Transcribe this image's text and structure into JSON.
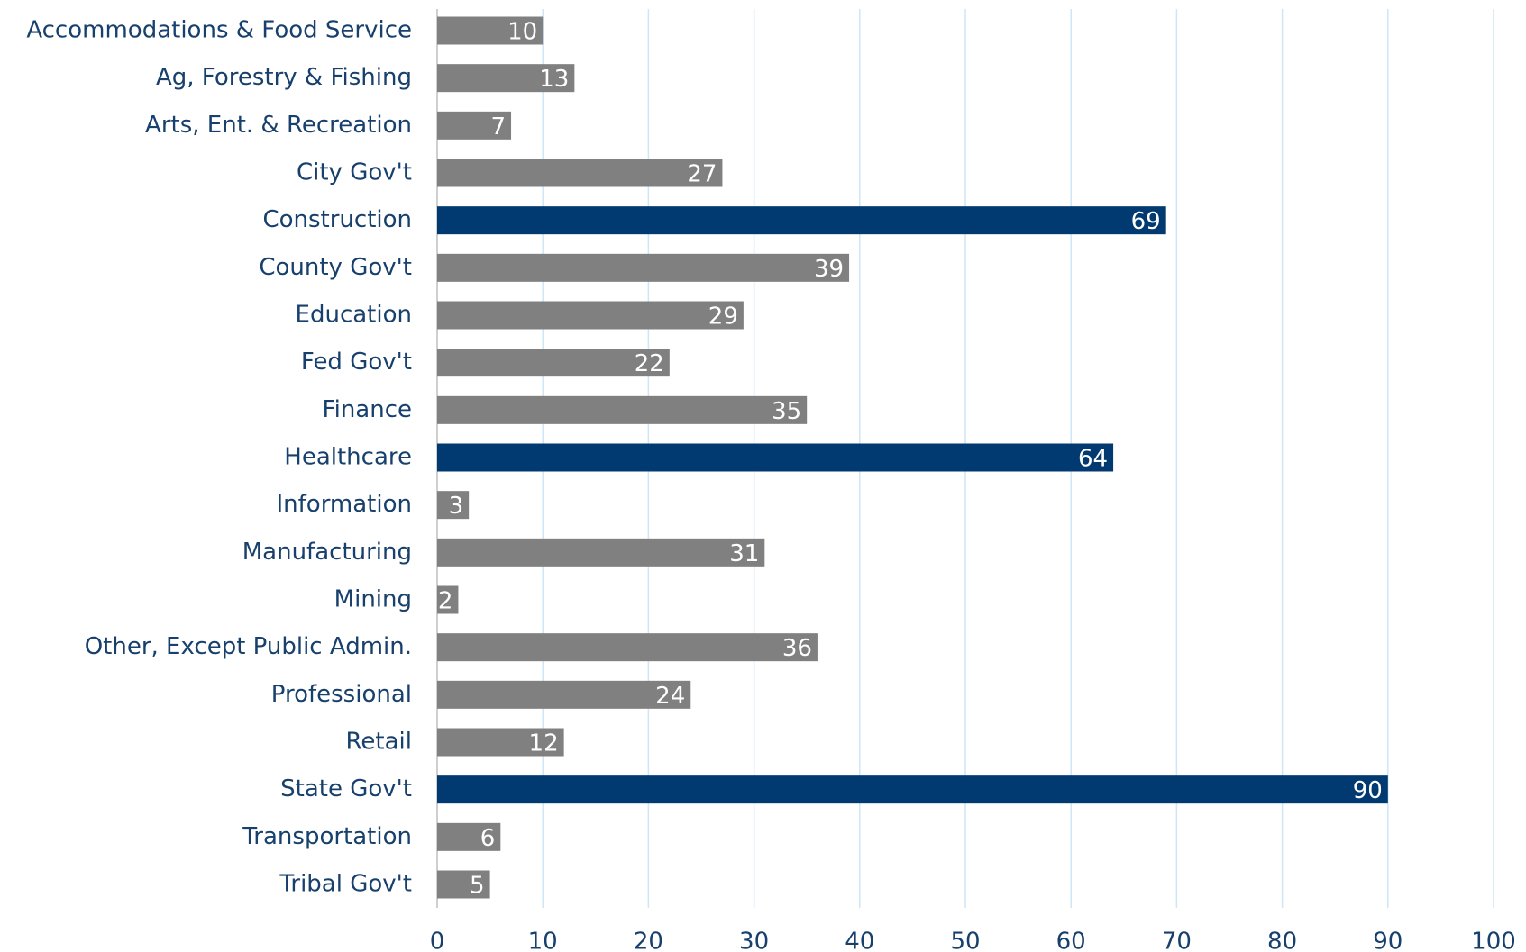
{
  "chart_data": {
    "type": "barh",
    "categories": [
      "Accommodations & Food Service",
      "Ag, Forestry & Fishing",
      "Arts, Ent. & Recreation",
      "City Gov't",
      "Construction",
      "County Gov't",
      "Education",
      "Fed Gov't",
      "Finance",
      "Healthcare",
      "Information",
      "Manufacturing",
      "Mining",
      "Other, Except Public Admin.",
      "Professional",
      "Retail",
      "State Gov't",
      "Transportation",
      "Tribal Gov't"
    ],
    "values": [
      10,
      13,
      7,
      27,
      69,
      39,
      29,
      22,
      35,
      64,
      3,
      31,
      2,
      36,
      24,
      12,
      90,
      6,
      5
    ],
    "colors": [
      "#808080",
      "#808080",
      "#808080",
      "#808080",
      "#003a70",
      "#808080",
      "#808080",
      "#808080",
      "#808080",
      "#003a70",
      "#808080",
      "#808080",
      "#808080",
      "#808080",
      "#808080",
      "#808080",
      "#003a70",
      "#808080",
      "#808080"
    ],
    "xlim": [
      0,
      100
    ],
    "xticks": [
      0,
      10,
      20,
      30,
      40,
      50,
      60,
      70,
      80,
      90,
      100
    ],
    "grid": true
  }
}
